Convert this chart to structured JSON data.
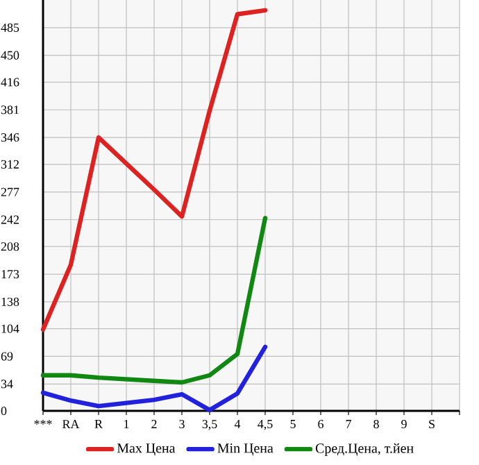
{
  "chart_data": {
    "type": "line",
    "categories": [
      "***",
      "RA",
      "R",
      "1",
      "2",
      "3",
      "3,5",
      "4",
      "4,5",
      "5",
      "6",
      "7",
      "8",
      "9",
      "S",
      null
    ],
    "series": [
      {
        "name": "Max Цена",
        "color": "#dd2222",
        "values": [
          103,
          185,
          346,
          313,
          280,
          246,
          380,
          502,
          507,
          null,
          null,
          null,
          null,
          null,
          null,
          null
        ]
      },
      {
        "name": "Min Цена",
        "color": "#2222dd",
        "values": [
          23,
          13,
          6,
          10,
          14,
          21,
          1,
          22,
          81,
          null,
          null,
          null,
          null,
          null,
          null,
          null
        ]
      },
      {
        "name": "Сред.Цена, т.йен",
        "color": "#118811",
        "values": [
          45,
          45,
          42,
          40,
          38,
          36,
          45,
          72,
          244,
          null,
          null,
          null,
          null,
          null,
          null,
          null
        ]
      }
    ],
    "ylim": [
      0,
      520
    ],
    "yticks": [
      0,
      34,
      69,
      104,
      138,
      173,
      208,
      242,
      277,
      312,
      346,
      381,
      416,
      450,
      485
    ],
    "grid": true,
    "legend": "bottom",
    "marker": "none",
    "line_style": "solid"
  }
}
